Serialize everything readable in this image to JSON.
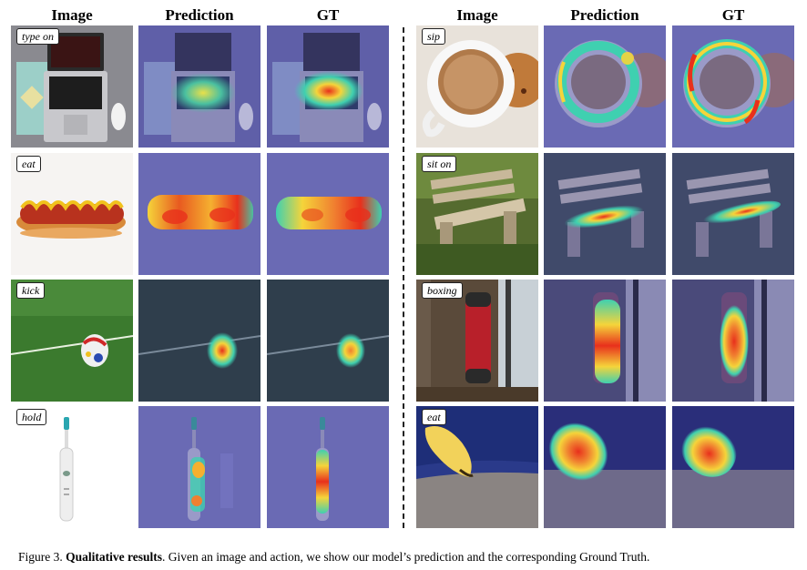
{
  "headers": {
    "left": [
      "Image",
      "Prediction",
      "GT"
    ],
    "right": [
      "Image",
      "Prediction",
      "GT"
    ]
  },
  "actions": {
    "left": [
      "type on",
      "eat",
      "kick",
      "hold"
    ],
    "right": [
      "sip",
      "sit on",
      "boxing",
      "eat"
    ]
  },
  "caption": {
    "label": "Figure 3.",
    "bold": "Qualitative results",
    "text": ". Given an image and action, we show our model’s prediction and the corresponding Ground Truth."
  },
  "colors": {
    "heat_overlay": "#6a6ad0",
    "heat_hot": "#e8301c",
    "heat_warm": "#f5d43a",
    "heat_cool": "#3fd0b0"
  }
}
